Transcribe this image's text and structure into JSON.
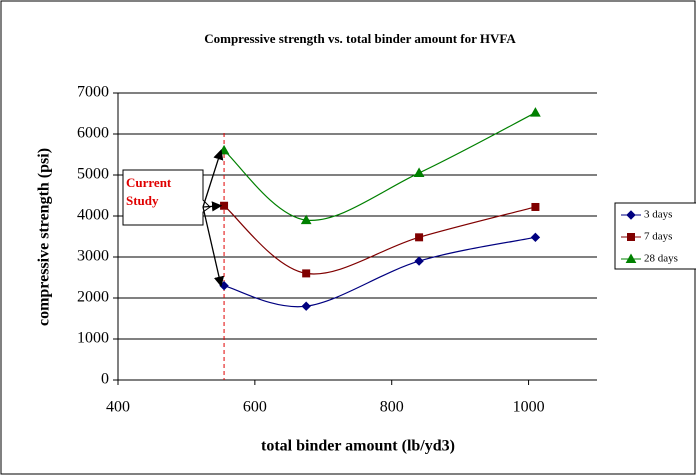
{
  "chart_data": {
    "type": "line",
    "title": "Compressive strength vs. total binder amount for HVFA",
    "x_label": "total binder amount (lb/yd3)",
    "y_label": "compressive strength (psi)",
    "annotation": "Current Study",
    "x": [
      555,
      675,
      840,
      1010
    ],
    "series": [
      {
        "name": "3 days",
        "color": "#000080",
        "marker": "diamond",
        "values": [
          2300,
          1800,
          2900,
          3480
        ]
      },
      {
        "name": "7 days",
        "color": "#800000",
        "marker": "square",
        "values": [
          4250,
          2600,
          3480,
          4220
        ]
      },
      {
        "name": "28 days",
        "color": "#008000",
        "marker": "triangle",
        "values": [
          5600,
          3900,
          5050,
          6520
        ]
      }
    ],
    "xlim": [
      400,
      1100
    ],
    "xticks": [
      400,
      600,
      800,
      1000
    ],
    "ylim": [
      0,
      7000
    ],
    "yticks": [
      0,
      1000,
      2000,
      3000,
      4000,
      5000,
      6000,
      7000
    ],
    "grid": true
  }
}
